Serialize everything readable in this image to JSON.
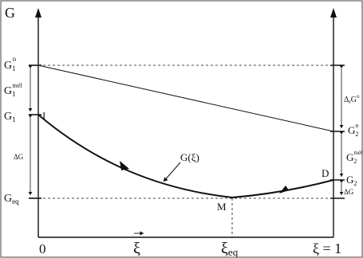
{
  "diagram": {
    "axis_label": "G",
    "left_labels": {
      "g1_zero": "G",
      "g1_zero_sub": "1",
      "g1_zero_sup": "o",
      "g1_mel": "G",
      "g1_mel_sub": "1",
      "g1_mel_sup": "mél",
      "g1": "G",
      "g1_sub": "1",
      "delta_g": "ΔG",
      "g_eq": "G",
      "g_eq_sub": "eq"
    },
    "right_labels": {
      "delta_r_g": "Δ",
      "delta_r_g_sub": "r",
      "delta_r_g_main": "G",
      "delta_r_g_sup": "o",
      "g2_zero": "G",
      "g2_zero_sub": "2",
      "g2_zero_sup": "o",
      "g2_mel": "G",
      "g2_mel_sub": "2",
      "g2_mel_sup": "mél",
      "g2": "G",
      "g2_sub": "2",
      "delta_g_small": "ΔG"
    },
    "points": {
      "I": "I",
      "M": "M",
      "D": "D"
    },
    "curve_label": "G(ξ)",
    "x_labels": {
      "zero": "0",
      "xi_arrow": "ξ",
      "xi_eq": "ξ",
      "xi_eq_sub": "eq",
      "xi_one": "ξ = 1"
    },
    "colors": {
      "ink": "#111111",
      "background": "#ffffff"
    }
  }
}
